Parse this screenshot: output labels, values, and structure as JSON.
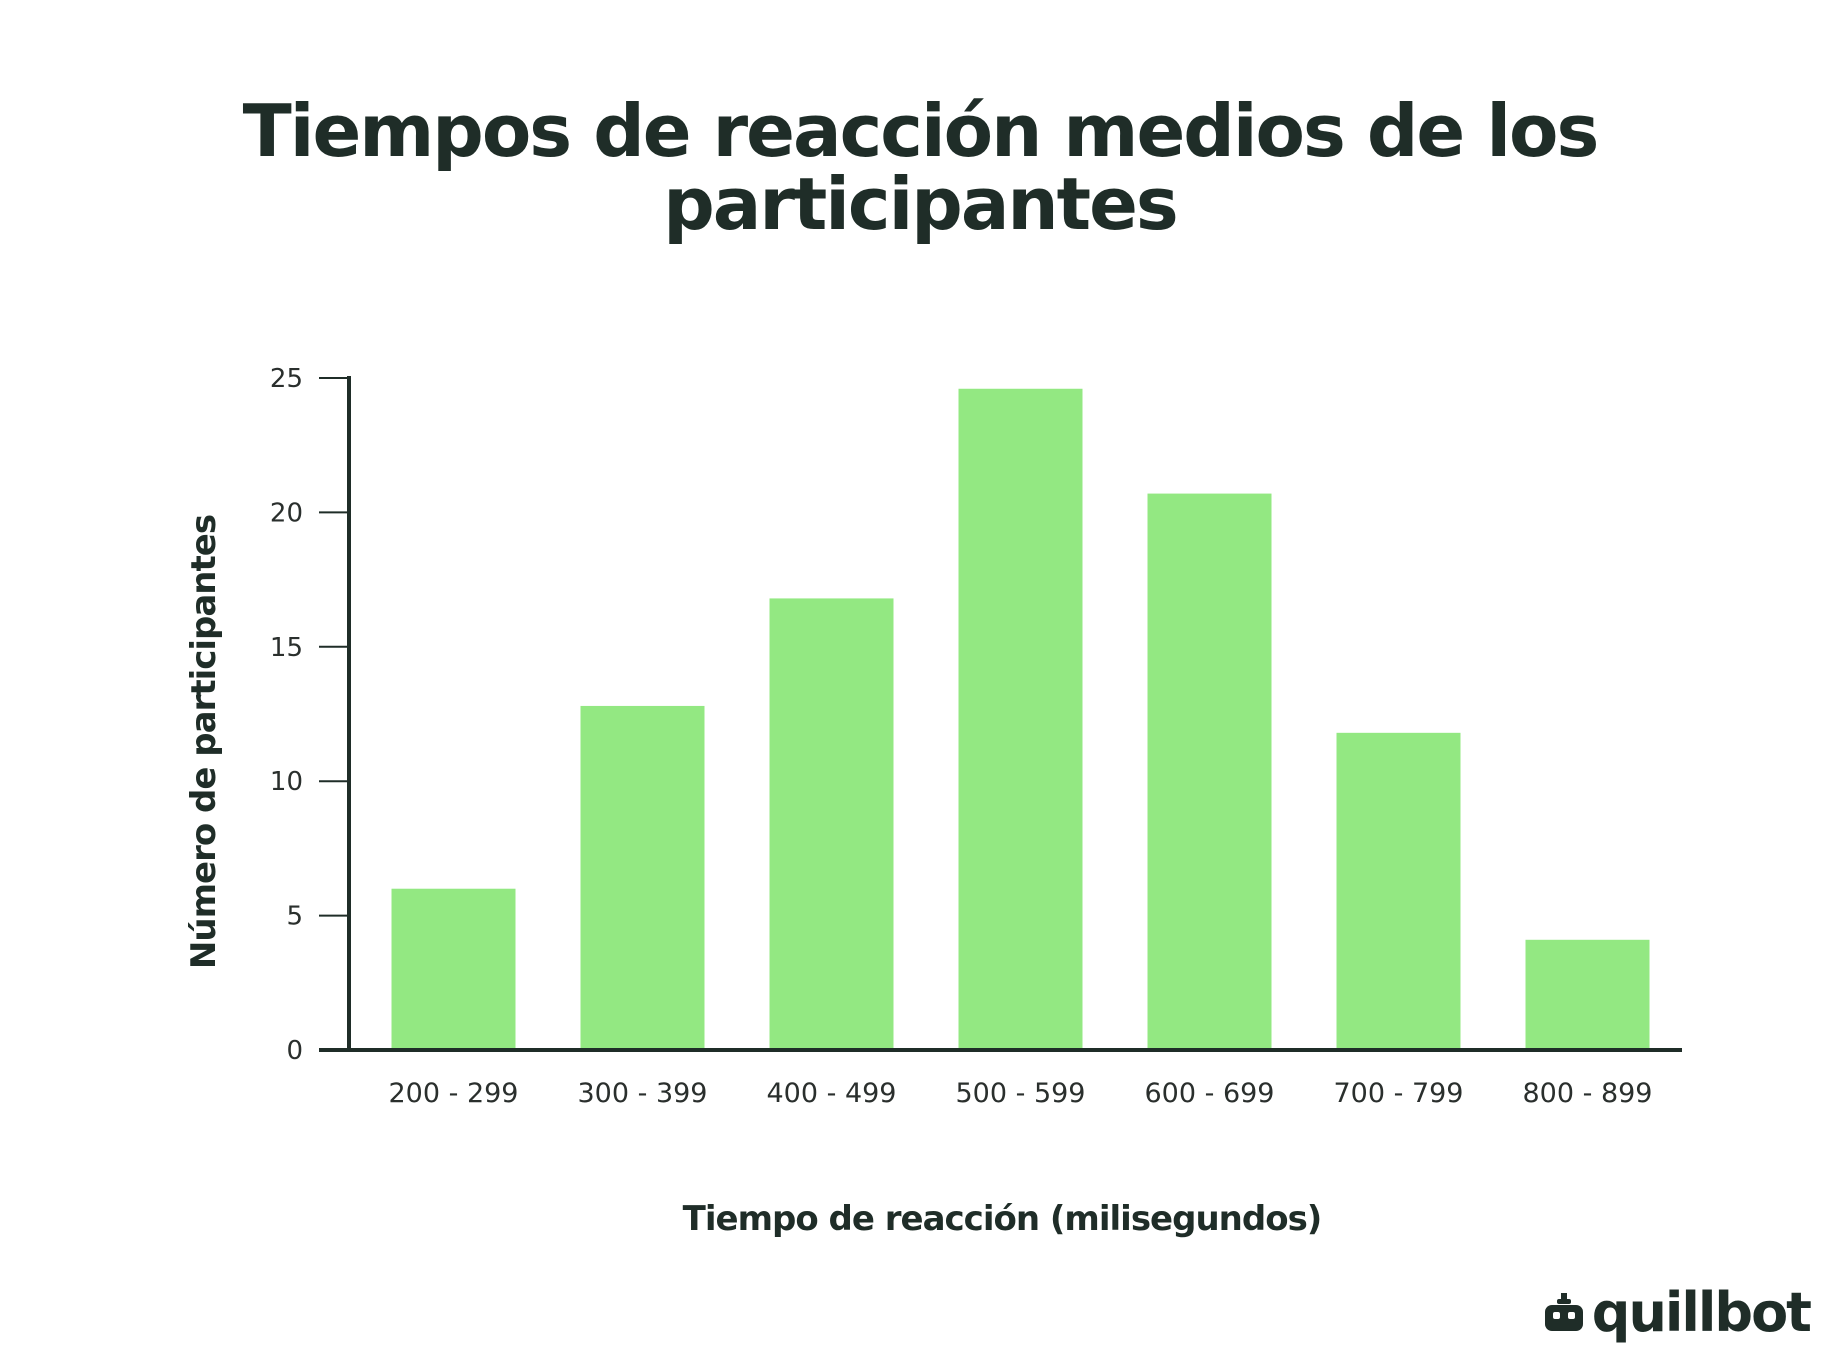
{
  "chart_data": {
    "type": "bar",
    "title_lines": [
      "Tiempos de reacción medios de los",
      "participantes"
    ],
    "xlabel": "Tiempo de reacción (milisegundos)",
    "ylabel": "Número de participantes",
    "categories": [
      "200 - 299",
      "300 - 399",
      "400 - 499",
      "500 - 599",
      "600 - 699",
      "700 - 799",
      "800 - 899"
    ],
    "values": [
      6,
      12.8,
      16.8,
      24.6,
      20.7,
      11.8,
      4.1
    ],
    "ylim": [
      0,
      25
    ],
    "yticks": [
      0,
      5,
      10,
      15,
      20,
      25
    ],
    "grid": false,
    "legend": "none",
    "bar_color": "#93e882",
    "axis_color": "#1f2d28"
  },
  "brand": {
    "name": "quillbot",
    "icon": "quillbot-robot-icon"
  }
}
